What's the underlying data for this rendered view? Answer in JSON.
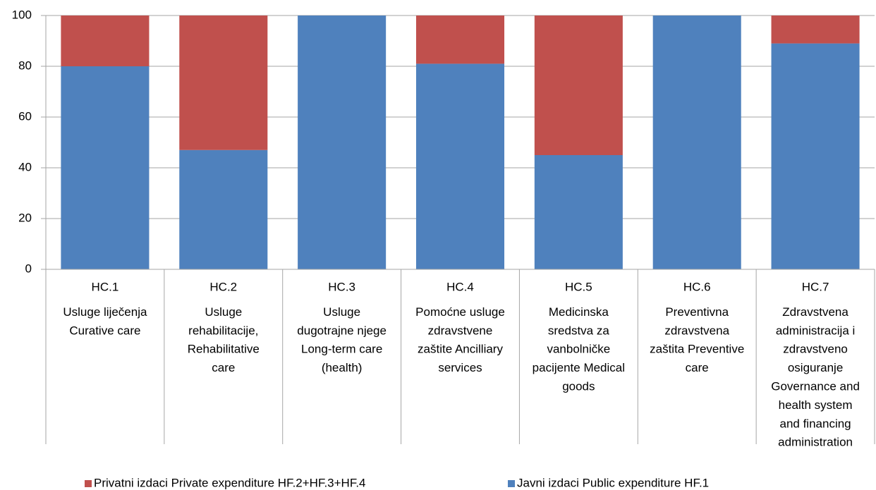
{
  "chart_data": {
    "type": "stacked_bar",
    "categories": [
      [
        "HC.1",
        "Usluge liječenja",
        "Curative care"
      ],
      [
        "HC.2",
        "Usluge",
        "rehabilitacije,",
        "Rehabilitative",
        "care"
      ],
      [
        "HC.3",
        "Usluge",
        "dugotrajne njege",
        "Long-term care",
        "(health)"
      ],
      [
        "HC.4",
        "Pomoćne usluge",
        "zdravstvene",
        "zaštite Ancilliary",
        "services"
      ],
      [
        "HC.5",
        "Medicinska",
        "sredstva za",
        "vanbolničke",
        "pacijente Medical",
        "goods"
      ],
      [
        "HC.6",
        "Preventivna",
        "zdravstvena",
        "zaštita Preventive",
        "care"
      ],
      [
        "HC.7",
        "Zdravstvena",
        "administracija i",
        "zdravstveno",
        "osiguranje",
        "Governance and",
        "health system",
        "and financing",
        "administration"
      ]
    ],
    "series": [
      {
        "name": "Privatni izdaci Private expenditure HF.2+HF.3+HF.4",
        "color": "#c0504d",
        "values": [
          20,
          53,
          0,
          19,
          55,
          0,
          11
        ]
      },
      {
        "name": "Javni izdaci Public expenditure HF.1",
        "color": "#4f81bd",
        "values": [
          80,
          47,
          100,
          81,
          45,
          100,
          89
        ]
      }
    ],
    "ylim": [
      0,
      100
    ],
    "yticks": [
      0,
      20,
      40,
      60,
      80,
      100
    ],
    "grid": true,
    "legend": "bottom"
  }
}
